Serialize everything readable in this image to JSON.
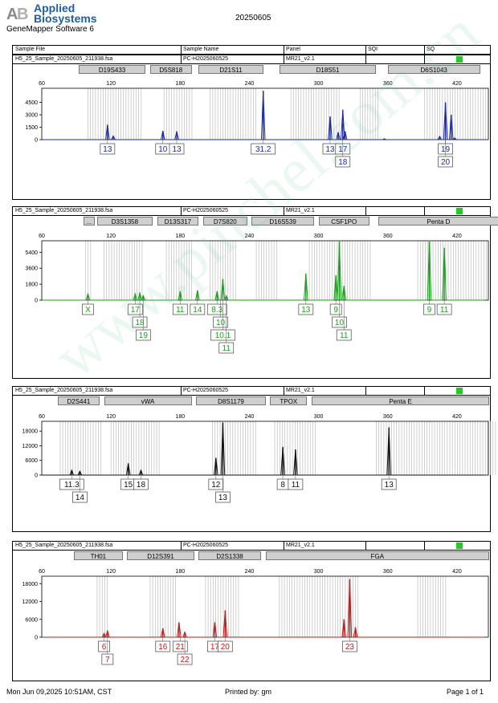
{
  "header": {
    "brand_line1": "Applied",
    "brand_line2": "Biosystems",
    "software": "GeneMapper Software 6",
    "report_date": "20250605"
  },
  "table_header": {
    "sample_file": "Sample File",
    "sample_name": "Sample Name",
    "panel": "Panel",
    "sqi": "SQI",
    "sq": "SQ"
  },
  "panels": [
    {
      "sample_file": "H5_25_Sample_20250605_211938.fsa",
      "sample_name": "PC-H2025060525",
      "panel": "MR21_v2.1",
      "color": "#1a2aa8",
      "sq_color": "#22cc22",
      "y_ticks": [
        0,
        1500,
        3000,
        4500
      ],
      "y_max": 6200,
      "markers": [
        {
          "name": "D19S433",
          "from": 92,
          "to": 150
        },
        {
          "name": "D5S818",
          "from": 154,
          "to": 190
        },
        {
          "name": "D21S11",
          "from": 196,
          "to": 252
        },
        {
          "name": "D18S51",
          "from": 266,
          "to": 350
        },
        {
          "name": "D6S1043",
          "from": 360,
          "to": 440
        }
      ],
      "bins": [
        [
          100,
          148
        ],
        [
          166,
          192
        ],
        [
          206,
          246
        ],
        [
          276,
          318
        ],
        [
          336,
          352
        ],
        [
          392,
          446
        ]
      ],
      "peaks": [
        [
          117,
          1800
        ],
        [
          122,
          450
        ],
        [
          165,
          1050
        ],
        [
          177,
          1000
        ],
        [
          252,
          5900
        ],
        [
          310,
          2800
        ],
        [
          321,
          3600
        ],
        [
          323,
          1000
        ],
        [
          317,
          900
        ],
        [
          357,
          100
        ],
        [
          410,
          4500
        ],
        [
          415,
          3000
        ],
        [
          405,
          400
        ],
        [
          418,
          200
        ]
      ],
      "labels": [
        {
          "x": 117,
          "row": 0,
          "text": "13"
        },
        {
          "x": 165,
          "row": 0,
          "text": "10"
        },
        {
          "x": 177,
          "row": 0,
          "text": "13"
        },
        {
          "x": 252,
          "row": 0,
          "text": "31.2"
        },
        {
          "x": 310,
          "row": 0,
          "text": "13"
        },
        {
          "x": 321,
          "row": 0,
          "text": "17"
        },
        {
          "x": 321,
          "row": 1,
          "text": "18"
        },
        {
          "x": 410,
          "row": 0,
          "text": "19"
        },
        {
          "x": 410,
          "row": 1,
          "text": "20"
        }
      ]
    },
    {
      "sample_file": "H5_25_Sample_20250605_211938.fsa",
      "sample_name": "PC-H2025060525",
      "panel": "MR21_v2.1",
      "color": "#1aa01a",
      "sq_color": "#22cc22",
      "y_ticks": [
        0,
        1800,
        3600,
        5400
      ],
      "y_max": 6700,
      "markers": [
        {
          "name": "...",
          "from": 96,
          "to": 106
        },
        {
          "name": "D3S1358",
          "from": 108,
          "to": 156
        },
        {
          "name": "D13S317",
          "from": 160,
          "to": 196
        },
        {
          "name": "D7S820",
          "from": 200,
          "to": 238
        },
        {
          "name": "D16S539",
          "from": 242,
          "to": 296
        },
        {
          "name": "CSF1PO",
          "from": 300,
          "to": 344
        },
        {
          "name": "Penta D",
          "from": 352,
          "to": 456
        }
      ],
      "bins": [
        [
          98,
          104
        ],
        [
          114,
          148
        ],
        [
          168,
          192
        ],
        [
          206,
          228
        ],
        [
          246,
          264
        ],
        [
          292,
          346
        ],
        [
          386,
          446
        ]
      ],
      "peaks": [
        [
          100,
          700
        ],
        [
          141,
          700
        ],
        [
          145,
          800
        ],
        [
          148,
          500
        ],
        [
          180,
          1000
        ],
        [
          195,
          1100
        ],
        [
          212,
          1000
        ],
        [
          217,
          2400
        ],
        [
          220,
          500
        ],
        [
          289,
          3000
        ],
        [
          315,
          2800
        ],
        [
          318,
          6600
        ],
        [
          322,
          1600
        ],
        [
          396,
          6600
        ],
        [
          409,
          5900
        ]
      ],
      "labels": [
        {
          "x": 100,
          "row": 0,
          "text": "X"
        },
        {
          "x": 141,
          "row": 0,
          "text": "17"
        },
        {
          "x": 145,
          "row": 1,
          "text": "18"
        },
        {
          "x": 148,
          "row": 2,
          "text": "19"
        },
        {
          "x": 180,
          "row": 0,
          "text": "11"
        },
        {
          "x": 195,
          "row": 0,
          "text": "14"
        },
        {
          "x": 212,
          "row": 0,
          "text": "8.3"
        },
        {
          "x": 215,
          "row": 1,
          "text": "10"
        },
        {
          "x": 217,
          "row": 2,
          "text": "10.1"
        },
        {
          "x": 220,
          "row": 3,
          "text": "11"
        },
        {
          "x": 289,
          "row": 0,
          "text": "13"
        },
        {
          "x": 315,
          "row": 0,
          "text": "9"
        },
        {
          "x": 318,
          "row": 1,
          "text": "10"
        },
        {
          "x": 322,
          "row": 2,
          "text": "11"
        },
        {
          "x": 396,
          "row": 0,
          "text": "9"
        },
        {
          "x": 409,
          "row": 0,
          "text": "11"
        }
      ]
    },
    {
      "sample_file": "H5_25_Sample_20250605_211938.fsa",
      "sample_name": "PC-H2025060525",
      "panel": "MR21_v2.1",
      "color": "#111111",
      "sq_color": "#22cc22",
      "y_ticks": [
        0,
        6000,
        12000,
        18000
      ],
      "y_max": 22000,
      "markers": [
        {
          "name": "D2S441",
          "from": 74,
          "to": 110
        },
        {
          "name": "vWA",
          "from": 114,
          "to": 190
        },
        {
          "name": "D8S1179",
          "from": 194,
          "to": 254
        },
        {
          "name": "TPOX",
          "from": 258,
          "to": 290
        },
        {
          "name": "Penta E",
          "from": 294,
          "to": 448
        }
      ],
      "bins": [
        [
          76,
          112
        ],
        [
          120,
          162
        ],
        [
          208,
          246
        ],
        [
          262,
          298
        ],
        [
          350,
          454
        ]
      ],
      "peaks": [
        [
          86,
          2000
        ],
        [
          93,
          1600
        ],
        [
          135,
          4800
        ],
        [
          146,
          2000
        ],
        [
          211,
          7000
        ],
        [
          217,
          21500
        ],
        [
          269,
          11500
        ],
        [
          280,
          10500
        ],
        [
          361,
          19500
        ]
      ],
      "labels": [
        {
          "x": 86,
          "row": 0,
          "text": "11.3"
        },
        {
          "x": 93,
          "row": 1,
          "text": "14"
        },
        {
          "x": 135,
          "row": 0,
          "text": "15"
        },
        {
          "x": 146,
          "row": 0,
          "text": "18"
        },
        {
          "x": 211,
          "row": 0,
          "text": "12"
        },
        {
          "x": 217,
          "row": 1,
          "text": "13"
        },
        {
          "x": 269,
          "row": 0,
          "text": "8"
        },
        {
          "x": 280,
          "row": 0,
          "text": "11"
        },
        {
          "x": 361,
          "row": 0,
          "text": "13"
        }
      ]
    },
    {
      "sample_file": "H5_25_Sample_20250605_211938.fsa",
      "sample_name": "PC-H2025060525",
      "panel": "MR21_v2.1",
      "color": "#c41a1a",
      "sq_color": "#22cc22",
      "y_ticks": [
        0,
        6000,
        12000,
        18000
      ],
      "y_max": 20500,
      "markers": [
        {
          "name": "TH01",
          "from": 88,
          "to": 130
        },
        {
          "name": "D12S391",
          "from": 134,
          "to": 192
        },
        {
          "name": "D2S1338",
          "from": 196,
          "to": 250
        },
        {
          "name": "FGA",
          "from": 254,
          "to": 448
        }
      ],
      "bins": [
        [
          108,
          118
        ],
        [
          154,
          176
        ],
        [
          202,
          232
        ],
        [
          266,
          336
        ],
        [
          386,
          412
        ]
      ],
      "peaks": [
        [
          114,
          1300
        ],
        [
          117,
          2100
        ],
        [
          165,
          3000
        ],
        [
          179,
          5000
        ],
        [
          184,
          1700
        ],
        [
          210,
          5000
        ],
        [
          219,
          9000
        ],
        [
          322,
          6000
        ],
        [
          327,
          19500
        ],
        [
          332,
          3300
        ]
      ],
      "labels": [
        {
          "x": 114,
          "row": 0,
          "text": "6"
        },
        {
          "x": 117,
          "row": 1,
          "text": "7"
        },
        {
          "x": 165,
          "row": 0,
          "text": "16"
        },
        {
          "x": 180,
          "row": 0,
          "text": "21"
        },
        {
          "x": 184,
          "row": 1,
          "text": "22"
        },
        {
          "x": 210,
          "row": 0,
          "text": "17"
        },
        {
          "x": 219,
          "row": 0,
          "text": "20"
        },
        {
          "x": 327,
          "row": 0,
          "text": "23"
        }
      ]
    }
  ],
  "chart_data": [
    {
      "type": "line",
      "xlim": [
        60,
        450
      ],
      "x_ticks": [
        60,
        120,
        180,
        240,
        300,
        360,
        420
      ]
    }
  ],
  "footer": {
    "datetime": "Mon Jun 09,2025 10:51AM, CST",
    "printed_by": "Printed by: gm",
    "page": "Page 1 of 1"
  }
}
